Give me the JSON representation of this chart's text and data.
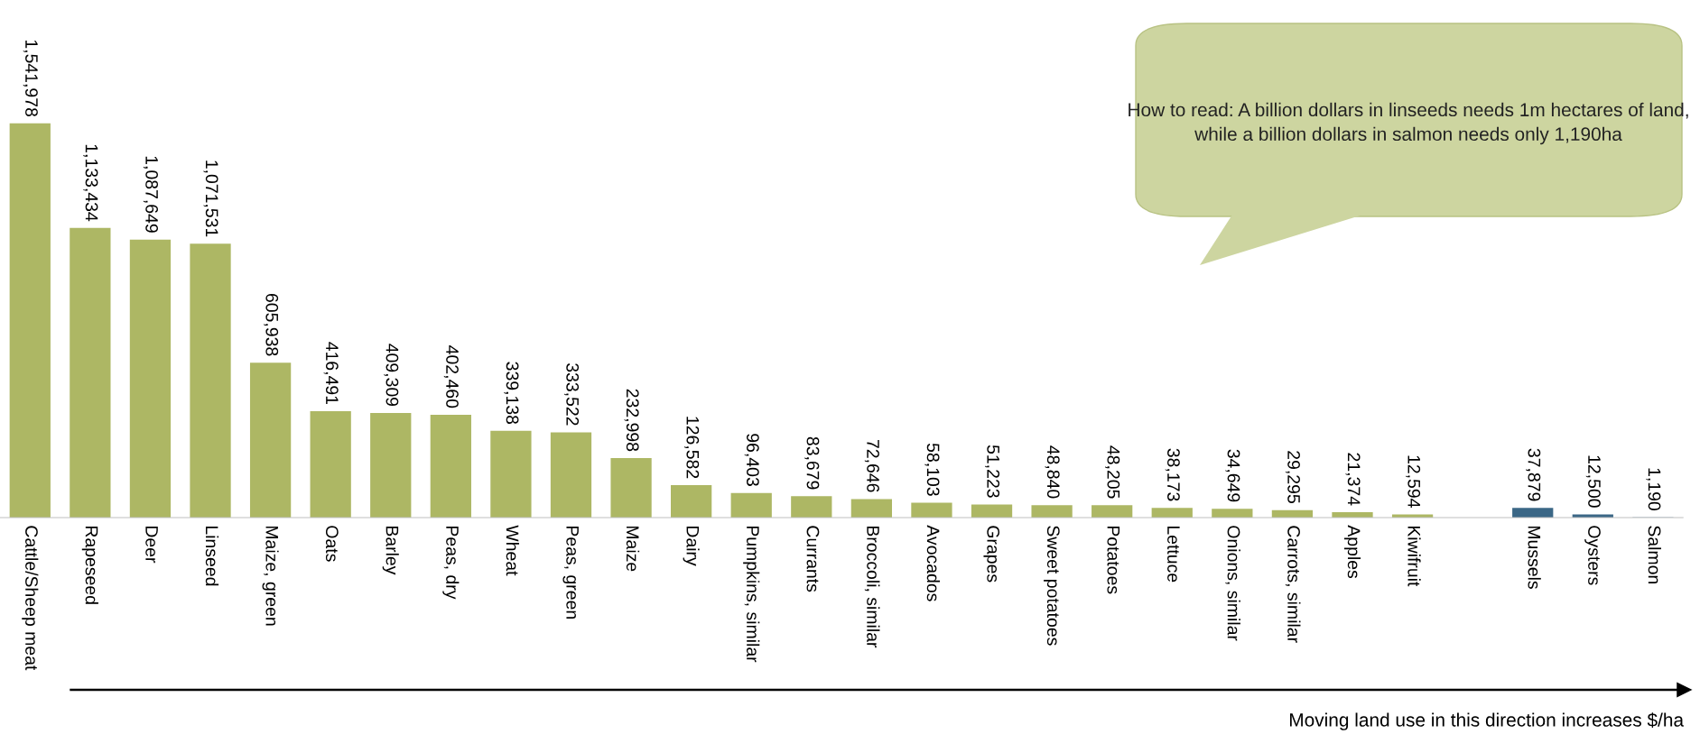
{
  "chart_data": {
    "type": "bar",
    "categories": [
      "Cattle/Sheep meat",
      "Rapeseed",
      "Deer",
      "Linseed",
      "Maize, green",
      "Oats",
      "Barley",
      "Peas, dry",
      "Wheat",
      "Peas, green",
      "Maize",
      "Dairy",
      "Pumpkins, similar",
      "Currants",
      "Broccoli, similar",
      "Avocados",
      "Grapes",
      "Sweet potatoes",
      "Potatoes",
      "Lettuce",
      "Onions, similar",
      "Carrots, similar",
      "Apples",
      "Kiwifruit",
      null,
      "Mussels",
      "Oysters",
      "Salmon"
    ],
    "values": [
      1541978,
      1133434,
      1087649,
      1071531,
      605938,
      416491,
      409309,
      402460,
      339138,
      333522,
      232998,
      126582,
      96403,
      83679,
      72646,
      58103,
      51223,
      48840,
      48205,
      38173,
      34649,
      29295,
      21374,
      12594,
      null,
      37879,
      12500,
      1190
    ],
    "value_labels": [
      "1,541,978",
      "1,133,434",
      "1,087,649",
      "1,071,531",
      "605,938",
      "416,491",
      "409,309",
      "402,460",
      "339,138",
      "333,522",
      "232,998",
      "126,582",
      "96,403",
      "83,679",
      "72,646",
      "58,103",
      "51,223",
      "48,840",
      "48,205",
      "38,173",
      "34,649",
      "29,295",
      "21,374",
      "12,594",
      null,
      "37,879",
      "12,500",
      "1,190"
    ],
    "colors": [
      "#adb764",
      "#adb764",
      "#adb764",
      "#adb764",
      "#adb764",
      "#adb764",
      "#adb764",
      "#adb764",
      "#adb764",
      "#adb764",
      "#adb764",
      "#adb764",
      "#adb764",
      "#adb764",
      "#adb764",
      "#adb764",
      "#adb764",
      "#adb764",
      "#adb764",
      "#adb764",
      "#adb764",
      "#adb764",
      "#adb764",
      "#adb764",
      null,
      "#3b6786",
      "#3b6786",
      "#3b6786"
    ],
    "annotations": [
      "How to read: A billion dollars in linseeds needs 1m hectares of land, while a billion dollars in salmon needs only 1,190ha",
      "Moving land use in this direction increases $/ha"
    ]
  }
}
